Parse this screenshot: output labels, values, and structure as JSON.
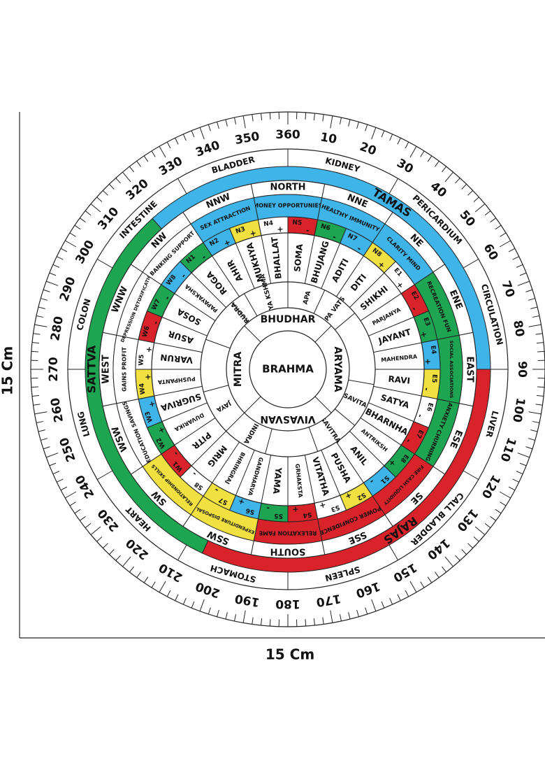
{
  "dimensions": {
    "height_label": "15 Cm",
    "width_label": "15 Cm"
  },
  "degrees": [
    "10",
    "20",
    "30",
    "40",
    "50",
    "60",
    "70",
    "80",
    "90",
    "100",
    "110",
    "120",
    "130",
    "140",
    "150",
    "160",
    "170",
    "180",
    "190",
    "200",
    "210",
    "220",
    "230",
    "240",
    "250",
    "260",
    "270",
    "280",
    "290",
    "300",
    "310",
    "320",
    "330",
    "340",
    "350",
    "360"
  ],
  "organs": [
    "BLADDER",
    "KIDNEY",
    "PERICARDIUM",
    "CIRCULATION",
    "LIVER",
    "CALL BLADDER",
    "SPLEEN",
    "STOMACH",
    "HEART",
    "LUNG",
    "COLON",
    "INTESTINE"
  ],
  "gunas": [
    "TAMAS",
    "RAJAS",
    "SATTVA"
  ],
  "directions": [
    {
      "name": "NORTH",
      "text": "MONEY OPPORTUNIES"
    },
    {
      "name": "NNE",
      "text": "HEALTHY IMMUNITY"
    },
    {
      "name": "NE",
      "text": "CLARITY MIND"
    },
    {
      "name": "ENE",
      "text": "RECREATION FUN"
    },
    {
      "name": "EAST",
      "text": "SOCIAL ASSOCIATIONS"
    },
    {
      "name": "ESE",
      "text": "ANXIETY CHURNING"
    },
    {
      "name": "SE",
      "text": "FIRE CASH LIQUIDITY"
    },
    {
      "name": "SSE",
      "text": "POWER CONFIDENCE"
    },
    {
      "name": "SOUTH",
      "text": "RELEXATION FAME"
    },
    {
      "name": "SSW",
      "text": "EXPENDITURE DISPOSAL"
    },
    {
      "name": "SW",
      "text": "RELATIONSHIP SKILLS"
    },
    {
      "name": "WSW",
      "text": "EDUCATION SAVINGS"
    },
    {
      "name": "WEST",
      "text": "GAINS PROFIT"
    },
    {
      "name": "WNW",
      "text": "DEPRESSION DETOXIFICATION"
    },
    {
      "name": "NW",
      "text": "BANKING SUPPORT"
    },
    {
      "name": "NNW",
      "text": "SEX ATTRACTION"
    }
  ],
  "codes": [
    {
      "code": "N1",
      "sign": "-"
    },
    {
      "code": "N2",
      "sign": "+"
    },
    {
      "code": "N3",
      "sign": "+"
    },
    {
      "code": "N4",
      "sign": "+"
    },
    {
      "code": "N5",
      "sign": "-"
    },
    {
      "code": "N6",
      "sign": "-"
    },
    {
      "code": "N7",
      "sign": "-"
    },
    {
      "code": "N8",
      "sign": "+"
    },
    {
      "code": "E1",
      "sign": "+"
    },
    {
      "code": "E2",
      "sign": "-"
    },
    {
      "code": "E3",
      "sign": "+"
    },
    {
      "code": "E4",
      "sign": "+"
    },
    {
      "code": "E5",
      "sign": "-"
    },
    {
      "code": "E6",
      "sign": "-"
    },
    {
      "code": "E7",
      "sign": "-"
    },
    {
      "code": "E8",
      "sign": "+"
    },
    {
      "code": "S1",
      "sign": "-"
    },
    {
      "code": "S2",
      "sign": "+"
    },
    {
      "code": "S3",
      "sign": "+"
    },
    {
      "code": "S4",
      "sign": "+"
    },
    {
      "code": "S5",
      "sign": "-"
    },
    {
      "code": "S6",
      "sign": "+"
    },
    {
      "code": "S7",
      "sign": "-"
    },
    {
      "code": "S8",
      "sign": "-"
    },
    {
      "code": "W1",
      "sign": "-"
    },
    {
      "code": "W2",
      "sign": "+"
    },
    {
      "code": "W3",
      "sign": "+"
    },
    {
      "code": "W4",
      "sign": "+"
    },
    {
      "code": "W5",
      "sign": "+"
    },
    {
      "code": "W6",
      "sign": "-"
    },
    {
      "code": "W7",
      "sign": "-"
    },
    {
      "code": "W8",
      "sign": "-"
    }
  ],
  "padas": [
    "ROGA",
    "AHIR",
    "MUKHYA",
    "BHALLAT",
    "SOMA",
    "BHUJANG",
    "ADITI",
    "DITI",
    "SHIKHI",
    "PARJANYA",
    "JAYANT",
    "MAHENDRA",
    "RAVI",
    "SATYA",
    "BHARNHA",
    "ANTRIKSH",
    "ANIL",
    "PUSHA",
    "VITATHA",
    "GRHAKSTA",
    "YAMA",
    "GANDHARVA",
    "BHRINGRAJ",
    "MRIG",
    "PITR",
    "DUVARIKA",
    "SUGRIVA",
    "PUSHPANTA",
    "VARUN",
    "ASUR",
    "SOSA",
    "PAPAYAKSHA"
  ],
  "inner": [
    "RAJYA KSHMA",
    "APA",
    "APA VATS",
    "SAVITA",
    "SAVITRA",
    "INDRA",
    "JAYA",
    "RUDRA"
  ],
  "center_ring": [
    "BHUDHAR",
    "ARYAMA",
    "VIVASVAN",
    "MITRA"
  ],
  "center": "BRAHMA"
}
